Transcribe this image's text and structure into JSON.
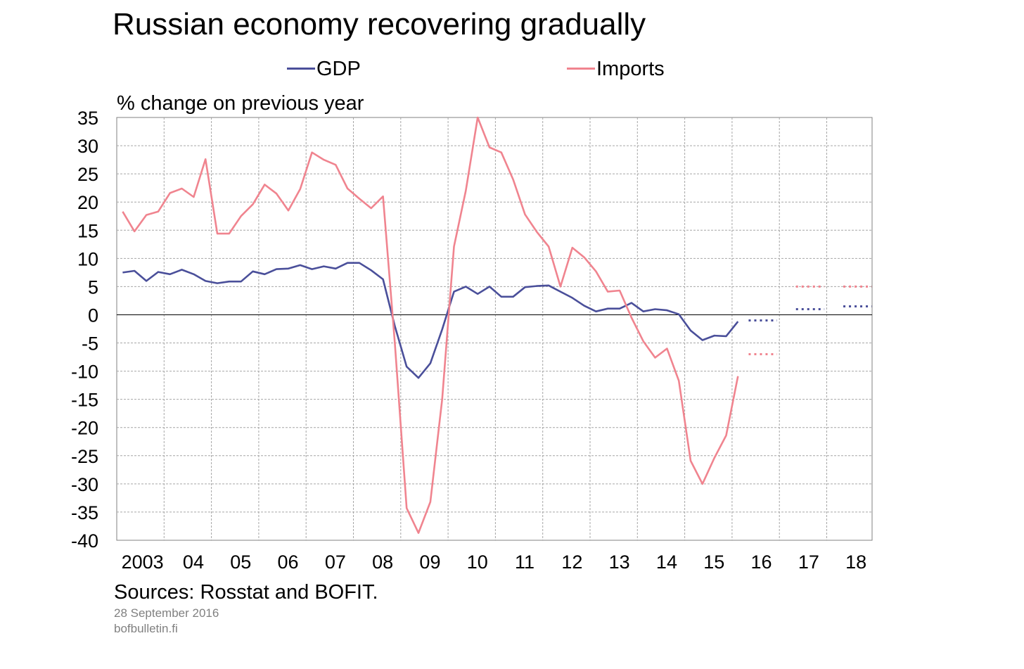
{
  "chart_data": {
    "type": "line",
    "title": "Russian economy recovering gradually",
    "ylabel": "% change on previous year",
    "xlabel": "",
    "ylim": [
      -40,
      35
    ],
    "yticks": [
      35,
      30,
      25,
      20,
      15,
      10,
      5,
      0,
      -5,
      -10,
      -15,
      -20,
      -25,
      -30,
      -35,
      -40
    ],
    "xticks": [
      "2003",
      "04",
      "05",
      "06",
      "07",
      "08",
      "09",
      "10",
      "11",
      "12",
      "13",
      "14",
      "15",
      "16",
      "17",
      "18"
    ],
    "x_start_year": 2003,
    "grid": true,
    "legend_position": "top",
    "series": [
      {
        "name": "GDP",
        "color": "#4a4f9a",
        "values": [
          7.5,
          7.8,
          6.0,
          7.6,
          7.2,
          8.0,
          7.2,
          6.0,
          5.6,
          5.9,
          5.9,
          7.7,
          7.2,
          8.1,
          8.2,
          8.8,
          8.1,
          8.6,
          8.2,
          9.2,
          9.2,
          7.9,
          6.3,
          -2.0,
          -9.2,
          -11.2,
          -8.6,
          -2.6,
          4.1,
          5.0,
          3.7,
          5.0,
          3.2,
          3.2,
          4.9,
          5.1,
          5.2,
          4.1,
          3.0,
          1.6,
          0.6,
          1.1,
          1.1,
          2.1,
          0.6,
          1.0,
          0.8,
          0.1,
          -2.8,
          -4.5,
          -3.7,
          -3.8,
          -1.2
        ],
        "forecast": [
          {
            "from": 2016.35,
            "to": 2016.95,
            "value": -1.0
          },
          {
            "from": 2017.35,
            "to": 2017.95,
            "value": 1.0
          },
          {
            "from": 2018.35,
            "to": 2018.95,
            "value": 1.5
          }
        ]
      },
      {
        "name": "Imports",
        "color": "#f0848f",
        "values": [
          18.3,
          14.8,
          17.7,
          18.3,
          21.6,
          22.4,
          20.9,
          27.6,
          14.4,
          14.4,
          17.5,
          19.6,
          23.1,
          21.5,
          18.5,
          22.3,
          28.8,
          27.5,
          26.6,
          22.4,
          20.6,
          18.9,
          21.0,
          -5.0,
          -34.3,
          -38.7,
          -33.2,
          -15.0,
          12.1,
          22.0,
          35.0,
          29.7,
          28.8,
          24.0,
          17.8,
          14.7,
          12.1,
          5.0,
          11.9,
          10.2,
          7.7,
          4.1,
          4.3,
          -0.5,
          -4.7,
          -7.6,
          -6.0,
          -11.7,
          -25.9,
          -30.0,
          -25.4,
          -21.4,
          -10.9
        ],
        "forecast": [
          {
            "from": 2016.35,
            "to": 2016.95,
            "value": -7.0
          },
          {
            "from": 2017.35,
            "to": 2017.95,
            "value": 5.0
          },
          {
            "from": 2018.35,
            "to": 2018.95,
            "value": 5.0
          }
        ]
      }
    ]
  },
  "source": "Sources: Rosstat and BOFIT.",
  "date": "28 September 2016",
  "site": "bofbulletin.fi"
}
